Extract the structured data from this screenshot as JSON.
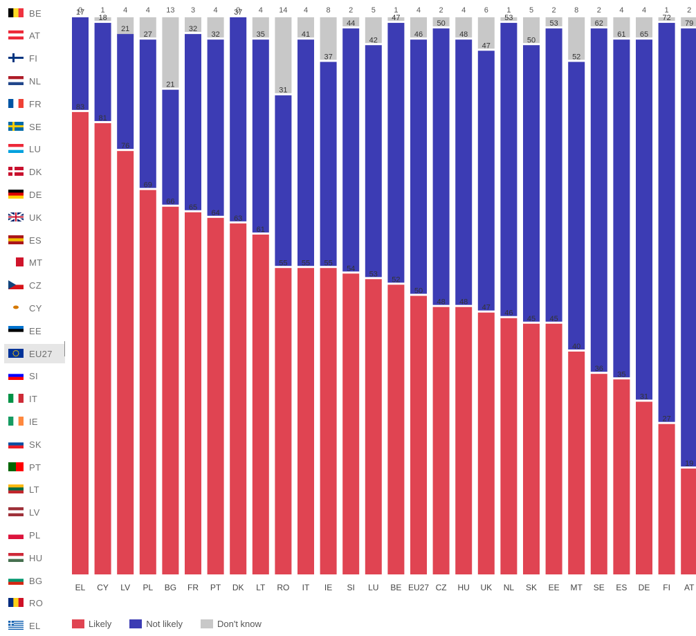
{
  "sidebar": {
    "countries": [
      {
        "code": "BE",
        "flag": [
          "#000000",
          "#fdda24",
          "#ef3340"
        ],
        "dir": "v"
      },
      {
        "code": "AT",
        "flag": [
          "#ed2939",
          "#ffffff",
          "#ed2939"
        ],
        "dir": "h"
      },
      {
        "code": "FI",
        "flag": "cross",
        "cross": [
          "#ffffff",
          "#003580"
        ]
      },
      {
        "code": "NL",
        "flag": [
          "#ae1c28",
          "#ffffff",
          "#21468b"
        ],
        "dir": "h"
      },
      {
        "code": "FR",
        "flag": [
          "#0055a4",
          "#ffffff",
          "#ef4135"
        ],
        "dir": "v"
      },
      {
        "code": "SE",
        "flag": "cross",
        "cross": [
          "#006aa7",
          "#fecc00"
        ]
      },
      {
        "code": "LU",
        "flag": [
          "#ed2939",
          "#ffffff",
          "#00a1de"
        ],
        "dir": "h"
      },
      {
        "code": "DK",
        "flag": "cross",
        "cross": [
          "#c8102e",
          "#ffffff"
        ]
      },
      {
        "code": "DE",
        "flag": [
          "#000000",
          "#dd0000",
          "#ffce00"
        ],
        "dir": "h"
      },
      {
        "code": "UK",
        "flag": "uk",
        "cross": [
          "#012169",
          "#c8102e"
        ]
      },
      {
        "code": "ES",
        "flag": [
          "#aa151b",
          "#f1bf00",
          "#aa151b"
        ],
        "dir": "h"
      },
      {
        "code": "MT",
        "flag": [
          "#ffffff",
          "#cf142b"
        ],
        "dir": "v"
      },
      {
        "code": "CZ",
        "flag": "cz",
        "cross": [
          "#11457e",
          "#d7141a"
        ]
      },
      {
        "code": "CY",
        "flag": "cy",
        "cross": [
          "#ffffff",
          "#d57800"
        ]
      },
      {
        "code": "EE",
        "flag": [
          "#0072ce",
          "#000000",
          "#ffffff"
        ],
        "dir": "h"
      },
      {
        "code": "EU27",
        "flag": "eu",
        "cross": [
          "#003399",
          "#ffcc00"
        ]
      },
      {
        "code": "SI",
        "flag": [
          "#ffffff",
          "#0000ff",
          "#ff0000"
        ],
        "dir": "h"
      },
      {
        "code": "IT",
        "flag": [
          "#009246",
          "#ffffff",
          "#ce2b37"
        ],
        "dir": "v"
      },
      {
        "code": "IE",
        "flag": [
          "#169b62",
          "#ffffff",
          "#ff883e"
        ],
        "dir": "v"
      },
      {
        "code": "SK",
        "flag": [
          "#ffffff",
          "#0b4ea2",
          "#ee1c25"
        ],
        "dir": "h"
      },
      {
        "code": "PT",
        "flag": [
          "#006600",
          "#ff0000"
        ],
        "dir": "v"
      },
      {
        "code": "LT",
        "flag": [
          "#fdb913",
          "#006a44",
          "#c1272d"
        ],
        "dir": "h"
      },
      {
        "code": "LV",
        "flag": [
          "#9e3039",
          "#ffffff",
          "#9e3039"
        ],
        "dir": "h"
      },
      {
        "code": "PL",
        "flag": [
          "#ffffff",
          "#dc143c"
        ],
        "dir": "h"
      },
      {
        "code": "HU",
        "flag": [
          "#ce2939",
          "#ffffff",
          "#477050"
        ],
        "dir": "h"
      },
      {
        "code": "BG",
        "flag": [
          "#ffffff",
          "#00966e",
          "#d62612"
        ],
        "dir": "h"
      },
      {
        "code": "RO",
        "flag": [
          "#002b7f",
          "#fcd116",
          "#ce1126"
        ],
        "dir": "v"
      },
      {
        "code": "EL",
        "flag": "el",
        "cross": [
          "#0d5eaf",
          "#ffffff"
        ]
      }
    ],
    "selected_index": 15
  },
  "colors": {
    "likely": "#e04452",
    "not_likely": "#3c3cb4",
    "dont_know": "#c8c8c8"
  },
  "legend": {
    "likely_label": "Likely",
    "not_likely_label": "Not likely",
    "dont_know_label": "Don't know"
  },
  "chart_data": {
    "type": "bar",
    "stacked": true,
    "categories": [
      "EL",
      "CY",
      "LV",
      "PL",
      "BG",
      "FR",
      "PT",
      "DK",
      "LT",
      "RO",
      "IT",
      "IE",
      "SI",
      "LU",
      "BE",
      "EU27",
      "CZ",
      "HU",
      "UK",
      "NL",
      "SK",
      "EE",
      "MT",
      "SE",
      "ES",
      "DE",
      "FI",
      "AT"
    ],
    "series": [
      {
        "name": "Likely",
        "values": [
          83,
          81,
          76,
          69,
          66,
          65,
          64,
          63,
          61,
          55,
          55,
          55,
          54,
          53,
          52,
          50,
          48,
          48,
          47,
          46,
          45,
          45,
          40,
          36,
          35,
          31,
          27,
          19
        ]
      },
      {
        "name": "Not likely",
        "values": [
          17,
          18,
          21,
          27,
          21,
          32,
          32,
          37,
          35,
          31,
          41,
          37,
          44,
          42,
          47,
          46,
          50,
          48,
          47,
          53,
          50,
          53,
          52,
          62,
          61,
          65,
          72,
          79
        ]
      },
      {
        "name": "Don't know",
        "values": [
          0,
          1,
          4,
          4,
          13,
          3,
          4,
          0,
          4,
          14,
          4,
          8,
          2,
          5,
          1,
          4,
          2,
          4,
          6,
          1,
          5,
          2,
          8,
          2,
          4,
          4,
          1,
          2
        ]
      }
    ],
    "ylim": [
      0,
      100
    ],
    "legend_position": "bottom-left",
    "grid": false
  }
}
